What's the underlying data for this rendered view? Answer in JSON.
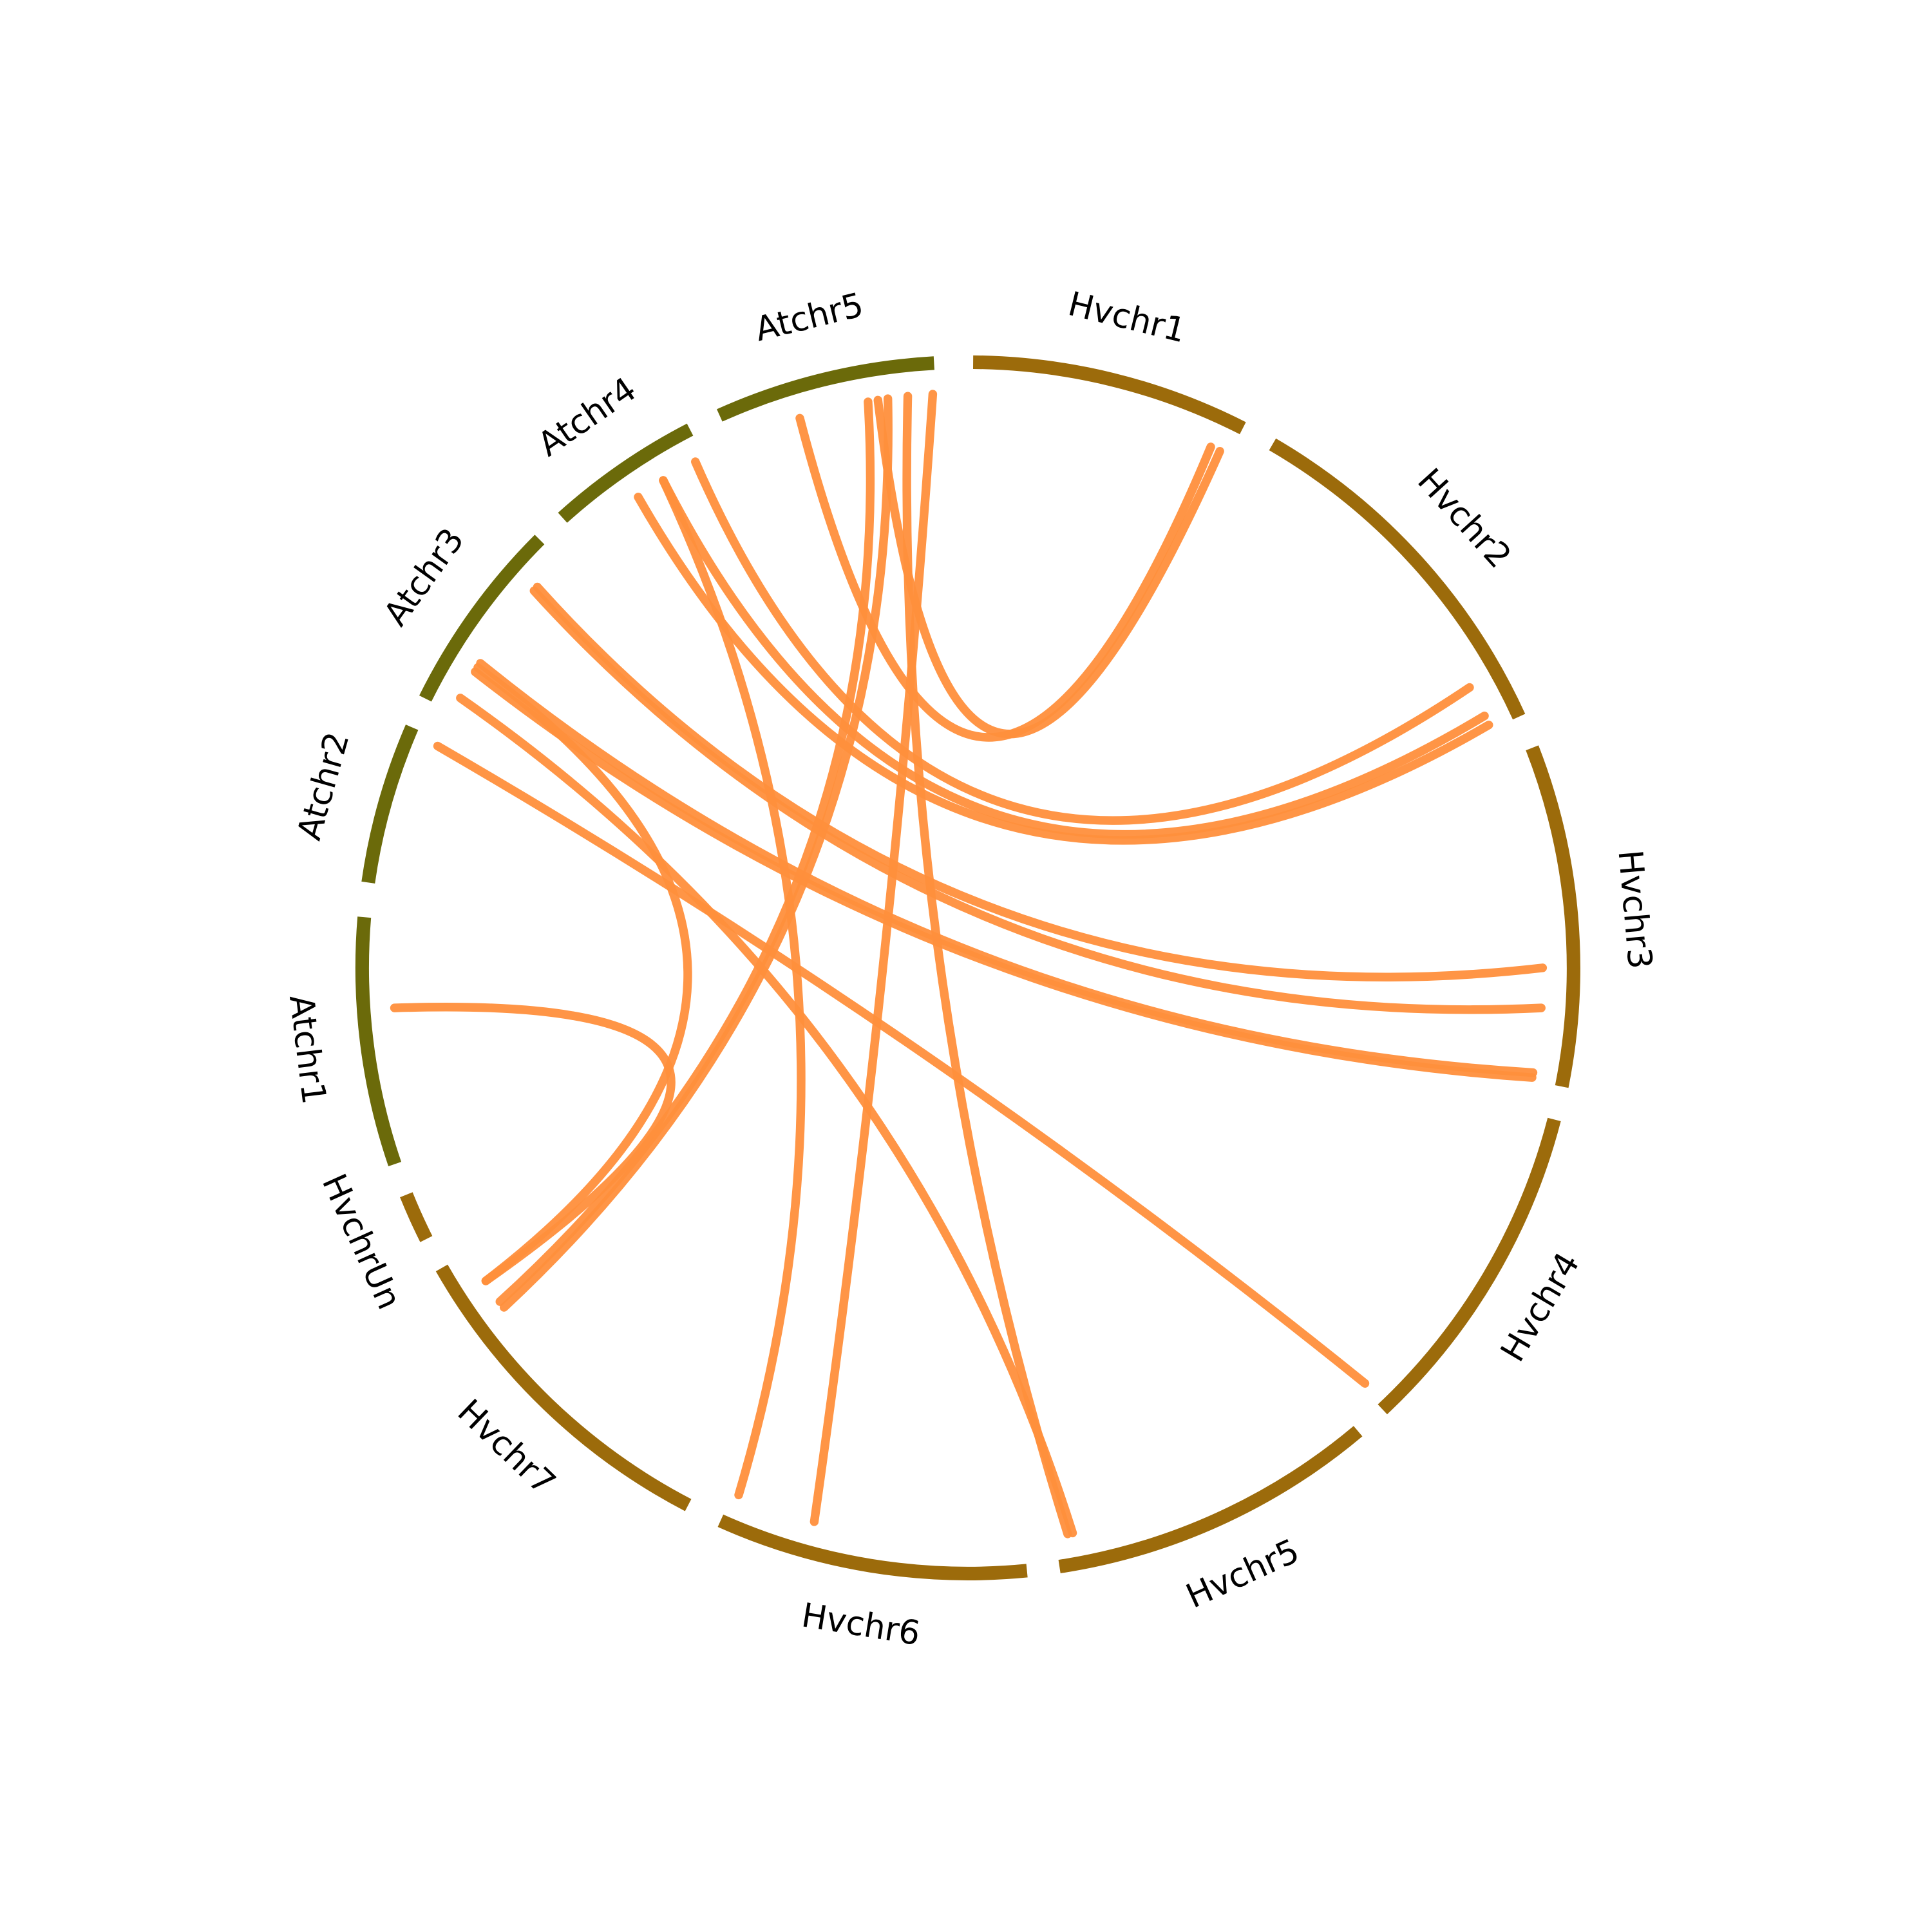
{
  "segments": [
    {
      "label": "Hvchr1",
      "color": "#9c6b0b"
    },
    {
      "label": "Hvchr2",
      "color": "#9c6b0b"
    },
    {
      "label": "Hvchr3",
      "color": "#9c6b0b"
    },
    {
      "label": "Hvchr4",
      "color": "#9c6b0b"
    },
    {
      "label": "Hvchr5",
      "color": "#9c6b0b"
    },
    {
      "label": "Hvchr6",
      "color": "#9c6b0b"
    },
    {
      "label": "Hvchr7",
      "color": "#9c6b0b"
    },
    {
      "label": "HvchrUn",
      "color": "#9c6b0b"
    },
    {
      "label": "Atchr1",
      "color": "#6b6a0a"
    },
    {
      "label": "Atchr2",
      "color": "#6b6a0a"
    },
    {
      "label": "Atchr3",
      "color": "#6b6a0a"
    },
    {
      "label": "Atchr4",
      "color": "#6b6a0a"
    },
    {
      "label": "Atchr5",
      "color": "#6b6a0a"
    }
  ]
}
